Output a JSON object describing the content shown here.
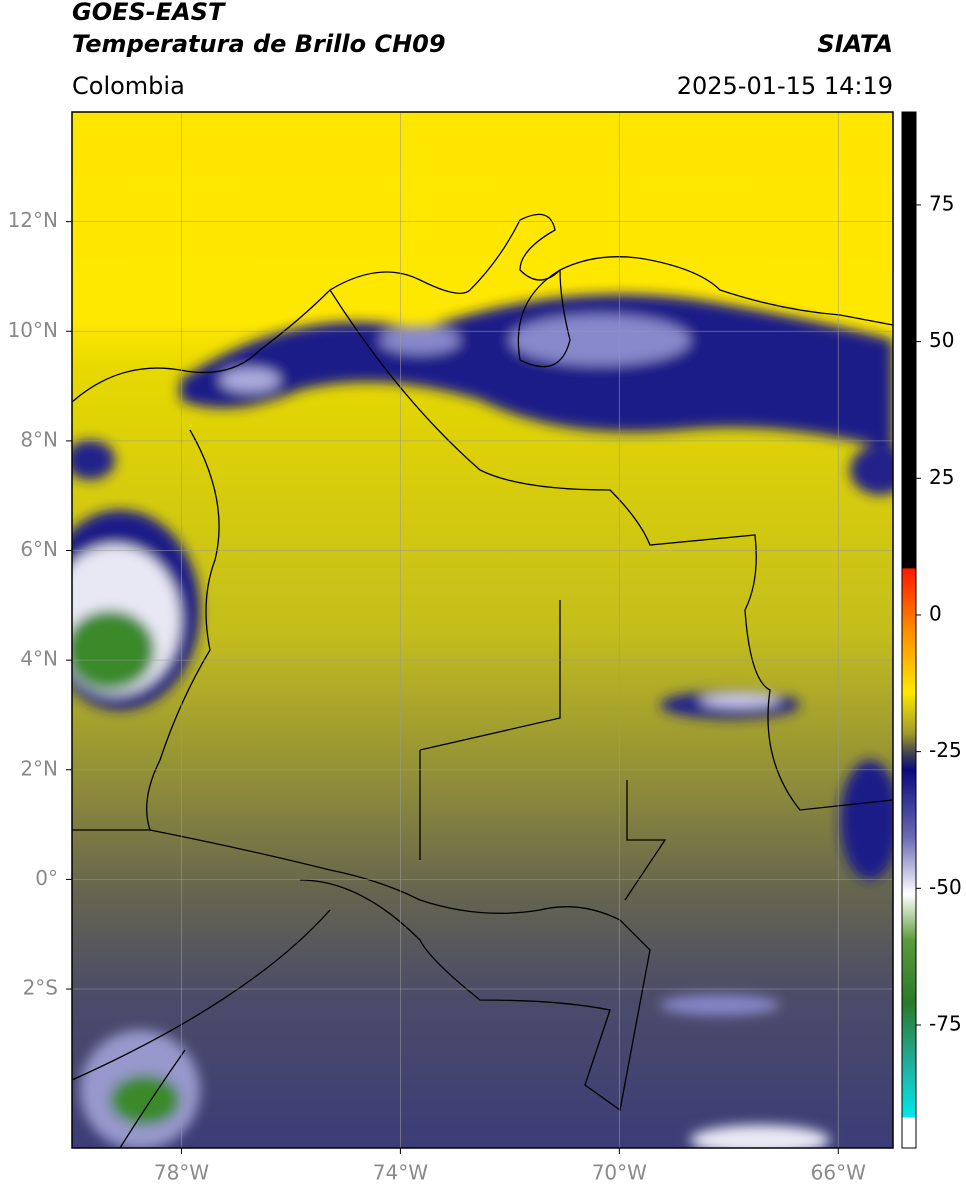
{
  "header": {
    "title": "GOES-EAST",
    "subtitle": "Temperatura de Brillo CH09",
    "source": "SIATA",
    "region": "Colombia",
    "timestamp": "2025-01-15 14:19"
  },
  "map": {
    "xlim": [
      -80,
      -65
    ],
    "ylim": [
      -4.9,
      14
    ],
    "xticks": [
      {
        "value": -78,
        "label": "78°W"
      },
      {
        "value": -74,
        "label": "74°W"
      },
      {
        "value": -70,
        "label": "70°W"
      },
      {
        "value": -66,
        "label": "66°W"
      }
    ],
    "yticks": [
      {
        "value": 12,
        "label": "12°N"
      },
      {
        "value": 10,
        "label": "10°N"
      },
      {
        "value": 8,
        "label": "8°N"
      },
      {
        "value": 6,
        "label": "6°N"
      },
      {
        "value": 4,
        "label": "4°N"
      },
      {
        "value": 2,
        "label": "2°N"
      },
      {
        "value": 0,
        "label": "0°"
      },
      {
        "value": -2,
        "label": "2°S"
      }
    ],
    "grid": true
  },
  "colorbar": {
    "lim": [
      -97.5,
      92
    ],
    "ticks": [
      75,
      50,
      25,
      0,
      -25,
      -50,
      -75
    ]
  }
}
